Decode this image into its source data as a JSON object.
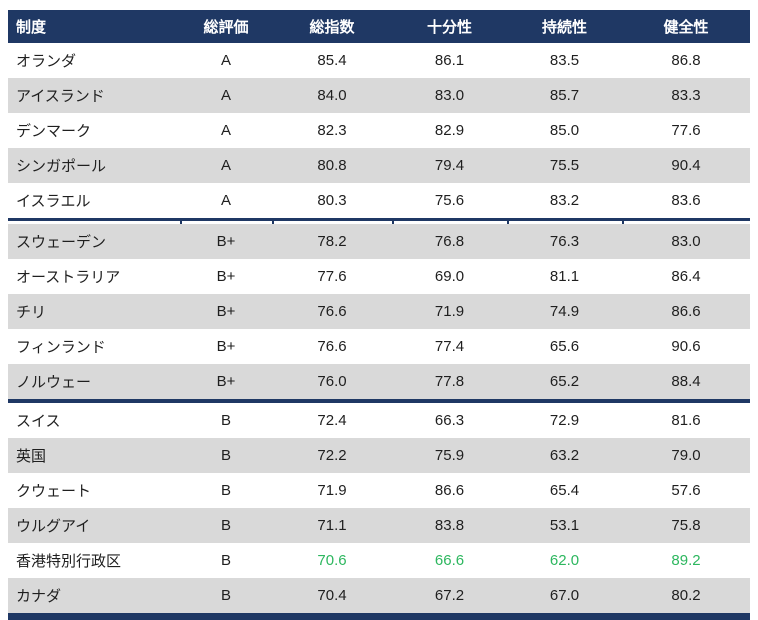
{
  "colors": {
    "header_background": "#1f3864",
    "alt_row_background": "#d9d9d9",
    "body_text": "#1f1f1f",
    "highlight_green": "#2db75f",
    "header_text": "#ffffff"
  },
  "table": {
    "columns": [
      {
        "label": "制度"
      },
      {
        "label": "総評価"
      },
      {
        "label": "総指数"
      },
      {
        "label": "十分性"
      },
      {
        "label": "持続性"
      },
      {
        "label": "健全性"
      }
    ],
    "groups": [
      {
        "rating_group": "A",
        "separator_after": "ticked",
        "rows": [
          {
            "name": "オランダ",
            "rating": "A",
            "values": [
              "85.4",
              "86.1",
              "83.5",
              "86.8"
            ]
          },
          {
            "name": "アイスランド",
            "rating": "A",
            "values": [
              "84.0",
              "83.0",
              "85.7",
              "83.3"
            ]
          },
          {
            "name": "デンマーク",
            "rating": "A",
            "values": [
              "82.3",
              "82.9",
              "85.0",
              "77.6"
            ]
          },
          {
            "name": "シンガポール",
            "rating": "A",
            "values": [
              "80.8",
              "79.4",
              "75.5",
              "90.4"
            ]
          },
          {
            "name": "イスラエル",
            "rating": "A",
            "values": [
              "80.3",
              "75.6",
              "83.2",
              "83.6"
            ]
          }
        ]
      },
      {
        "rating_group": "B+",
        "separator_after": "thick",
        "rows": [
          {
            "name": "スウェーデン",
            "rating": "B+",
            "values": [
              "78.2",
              "76.8",
              "76.3",
              "83.0"
            ]
          },
          {
            "name": "オーストラリア",
            "rating": "B+",
            "values": [
              "77.6",
              "69.0",
              "81.1",
              "86.4"
            ]
          },
          {
            "name": "チリ",
            "rating": "B+",
            "values": [
              "76.6",
              "71.9",
              "74.9",
              "86.6"
            ]
          },
          {
            "name": "フィンランド",
            "rating": "B+",
            "values": [
              "76.6",
              "77.4",
              "65.6",
              "90.6"
            ]
          },
          {
            "name": "ノルウェー",
            "rating": "B+",
            "values": [
              "76.0",
              "77.8",
              "65.2",
              "88.4"
            ]
          }
        ]
      },
      {
        "rating_group": "B",
        "separator_after": "bar",
        "rows": [
          {
            "name": "スイス",
            "rating": "B",
            "values": [
              "72.4",
              "66.3",
              "72.9",
              "81.6"
            ]
          },
          {
            "name": "英国",
            "rating": "B",
            "values": [
              "72.2",
              "75.9",
              "63.2",
              "79.0"
            ]
          },
          {
            "name": "クウェート",
            "rating": "B",
            "values": [
              "71.9",
              "86.6",
              "65.4",
              "57.6"
            ]
          },
          {
            "name": "ウルグアイ",
            "rating": "B",
            "values": [
              "71.1",
              "83.8",
              "53.1",
              "75.8"
            ]
          },
          {
            "name": "香港特別行政区",
            "rating": "B",
            "values": [
              "70.6",
              "66.6",
              "62.0",
              "89.2"
            ],
            "highlight": true
          },
          {
            "name": "カナダ",
            "rating": "B",
            "values": [
              "70.4",
              "67.2",
              "67.0",
              "80.2"
            ]
          }
        ]
      }
    ]
  },
  "chart_data": {
    "type": "table",
    "title": "",
    "columns": [
      "制度",
      "総評価",
      "総指数",
      "十分性",
      "持続性",
      "健全性"
    ],
    "rows": [
      [
        "オランダ",
        "A",
        85.4,
        86.1,
        83.5,
        86.8
      ],
      [
        "アイスランド",
        "A",
        84.0,
        83.0,
        85.7,
        83.3
      ],
      [
        "デンマーク",
        "A",
        82.3,
        82.9,
        85.0,
        77.6
      ],
      [
        "シンガポール",
        "A",
        80.8,
        79.4,
        75.5,
        90.4
      ],
      [
        "イスラエル",
        "A",
        80.3,
        75.6,
        83.2,
        83.6
      ],
      [
        "スウェーデン",
        "B+",
        78.2,
        76.8,
        76.3,
        83.0
      ],
      [
        "オーストラリア",
        "B+",
        77.6,
        69.0,
        81.1,
        86.4
      ],
      [
        "チリ",
        "B+",
        76.6,
        71.9,
        74.9,
        86.6
      ],
      [
        "フィンランド",
        "B+",
        76.6,
        77.4,
        65.6,
        90.6
      ],
      [
        "ノルウェー",
        "B+",
        76.0,
        77.8,
        65.2,
        88.4
      ],
      [
        "スイス",
        "B",
        72.4,
        66.3,
        72.9,
        81.6
      ],
      [
        "英国",
        "B",
        72.2,
        75.9,
        63.2,
        79.0
      ],
      [
        "クウェート",
        "B",
        71.9,
        86.6,
        65.4,
        57.6
      ],
      [
        "ウルグアイ",
        "B",
        71.1,
        83.8,
        53.1,
        75.8
      ],
      [
        "香港特別行政区",
        "B",
        70.6,
        66.6,
        62.0,
        89.2
      ],
      [
        "カナダ",
        "B",
        70.4,
        67.2,
        67.0,
        80.2
      ]
    ],
    "highlighted_row": "香港特別行政区",
    "highlight_color": "#2db75f",
    "layout_hints": {
      "zebra_striping": true,
      "group_separators_after": [
        "イスラエル",
        "ノルウェー",
        "カナダ"
      ],
      "header_style": "navy background, white bold text",
      "value_alignment": "center",
      "first_column_alignment": "left"
    }
  }
}
